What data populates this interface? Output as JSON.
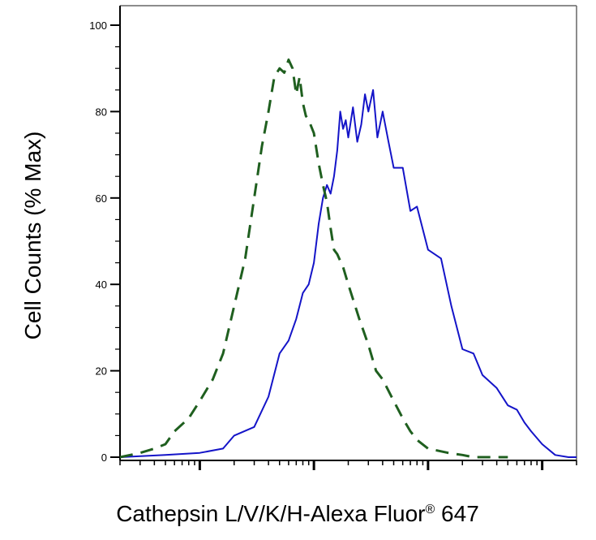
{
  "chart_data": {
    "type": "line",
    "title": "",
    "xlabel": "Cathepsin L/V/K/H-Alexa Fluor",
    "xlabel_registered": "®",
    "xlabel_suffix": " 647",
    "ylabel": "Cell Counts (% Max)",
    "x_scale": "log",
    "xlim": [
      0.2,
      2000
    ],
    "ylim": [
      0,
      100
    ],
    "y_ticks": [
      {
        "value": 0,
        "label": "0"
      },
      {
        "value": 20,
        "label": "20"
      },
      {
        "value": 40,
        "label": "40"
      },
      {
        "value": 60,
        "label": "60"
      },
      {
        "value": 80,
        "label": "80"
      },
      {
        "value": 100,
        "label": "100"
      }
    ],
    "x_major_ticks": [
      1,
      10,
      100,
      1000
    ],
    "grid": false,
    "legend": "none",
    "series": [
      {
        "color": "#1414c8",
        "line_style": "solid",
        "x": [
          0.2,
          0.5,
          1.0,
          1.6,
          2.0,
          3.0,
          4.0,
          5.0,
          6.0,
          7.0,
          8.0,
          9.0,
          10.0,
          11.0,
          12.0,
          13.0,
          14.0,
          15.0,
          16.0,
          17.0,
          18.0,
          19.0,
          20.0,
          22.0,
          24.0,
          26.0,
          28.0,
          30.0,
          33.0,
          36.0,
          40.0,
          45.0,
          50.0,
          60.0,
          70.0,
          80.0,
          100.0,
          130.0,
          160.0,
          200.0,
          250.0,
          300.0,
          400.0,
          500.0,
          600.0,
          700.0,
          800.0,
          1000.0,
          1300.0,
          1700.0,
          1900.0,
          2000.0
        ],
        "y": [
          0,
          0.5,
          1.0,
          2.0,
          5.0,
          7.0,
          14.0,
          24.0,
          27.0,
          32.0,
          38.0,
          40.0,
          45.0,
          54.0,
          60.0,
          63.0,
          61.0,
          65.0,
          71.0,
          80.0,
          76.0,
          78.0,
          74.0,
          81.0,
          73.0,
          77.0,
          84.0,
          80.0,
          85.0,
          74.0,
          80.0,
          73.0,
          67.0,
          67.0,
          57.0,
          58.0,
          48.0,
          46.0,
          35.0,
          25.0,
          24.0,
          19.0,
          16.0,
          12.0,
          11.0,
          8.0,
          6.0,
          3.0,
          0.5,
          0,
          0,
          0
        ]
      },
      {
        "color": "#1f5f1f",
        "line_style": "dashed",
        "x": [
          0.2,
          0.3,
          0.4,
          0.5,
          0.6,
          0.8,
          1.0,
          1.3,
          1.6,
          2.0,
          2.5,
          3.0,
          3.5,
          4.0,
          4.5,
          5.0,
          5.5,
          6.0,
          6.5,
          7.0,
          7.5,
          8.0,
          8.5,
          9.0,
          10.0,
          11.0,
          12.0,
          13.0,
          14.0,
          15.0,
          16.0,
          18.0,
          20.0,
          25.0,
          30.0,
          35.0,
          40.0,
          50.0,
          60.0,
          70.0,
          80.0,
          100.0,
          150.0,
          200.0,
          250.0,
          300.0,
          500.0
        ],
        "y": [
          0,
          1,
          2,
          3,
          6,
          9,
          13,
          18,
          24,
          35,
          46,
          60,
          72,
          80,
          88,
          90,
          89,
          92,
          90,
          84,
          88,
          82,
          79,
          78,
          75,
          68,
          63,
          59,
          53,
          48,
          47,
          44,
          40,
          32,
          26,
          20,
          18,
          13,
          9,
          6,
          4,
          2,
          1,
          0.5,
          0,
          0,
          0
        ]
      }
    ]
  }
}
